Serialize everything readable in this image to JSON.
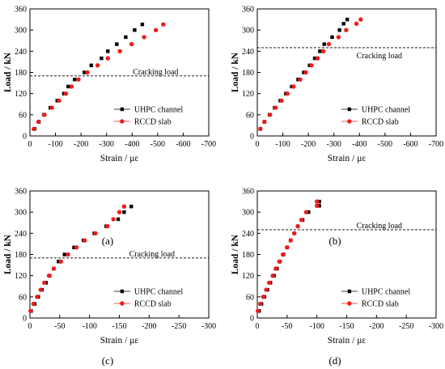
{
  "chart_data": [
    {
      "type": "scatter",
      "panel_label": "(a)",
      "xlabel": "Strain / με",
      "ylabel": "Load / kN",
      "xlim": [
        0,
        -700
      ],
      "ylim": [
        0,
        360
      ],
      "xticks": [
        0,
        -100,
        -200,
        -300,
        -400,
        -500,
        -600,
        -700
      ],
      "xtick_labels": [
        "0",
        "-100",
        "-200",
        "-300",
        "-400",
        "-500",
        "-600",
        "-700"
      ],
      "yticks": [
        0,
        60,
        120,
        180,
        240,
        300,
        360
      ],
      "ytick_labels": [
        "0",
        "60",
        "120",
        "180",
        "240",
        "300",
        "360"
      ],
      "legend_position": "lower-right",
      "cracking_load": {
        "y": 170,
        "label": "Cracking load"
      },
      "series": [
        {
          "name": "UHPC channel",
          "marker": "square",
          "color": "#000000",
          "points": [
            [
              -18,
              20
            ],
            [
              -35,
              40
            ],
            [
              -55,
              60
            ],
            [
              -80,
              80
            ],
            [
              -107,
              100
            ],
            [
              -133,
              120
            ],
            [
              -150,
              140
            ],
            [
              -175,
              160
            ],
            [
              -213,
              180
            ],
            [
              -240,
              200
            ],
            [
              -280,
              220
            ],
            [
              -305,
              240
            ],
            [
              -340,
              260
            ],
            [
              -375,
              280
            ],
            [
              -410,
              300
            ],
            [
              -440,
              316
            ]
          ]
        },
        {
          "name": "RCCD slab",
          "marker": "circle",
          "color": "#ee1c1c",
          "points": [
            [
              -15,
              20
            ],
            [
              -33,
              40
            ],
            [
              -57,
              60
            ],
            [
              -86,
              80
            ],
            [
              -114,
              100
            ],
            [
              -141,
              120
            ],
            [
              -163,
              140
            ],
            [
              -190,
              160
            ],
            [
              -225,
              180
            ],
            [
              -265,
              200
            ],
            [
              -305,
              220
            ],
            [
              -352,
              240
            ],
            [
              -398,
              260
            ],
            [
              -447,
              280
            ],
            [
              -493,
              300
            ],
            [
              -522,
              316
            ]
          ]
        }
      ]
    },
    {
      "type": "scatter",
      "panel_label": "(b)",
      "xlabel": "Strain / με",
      "ylabel": "Load / kN",
      "xlim": [
        0,
        -700
      ],
      "ylim": [
        0,
        360
      ],
      "xticks": [
        0,
        -100,
        -200,
        -300,
        -400,
        -500,
        -600,
        -700
      ],
      "xtick_labels": [
        "0",
        "-100",
        "-200",
        "-300",
        "-400",
        "-500",
        "-600",
        "-700"
      ],
      "yticks": [
        0,
        60,
        120,
        180,
        240,
        300,
        360
      ],
      "ytick_labels": [
        "0",
        "60",
        "120",
        "180",
        "240",
        "300",
        "360"
      ],
      "legend_position": "lower-right",
      "cracking_load": {
        "y": 250,
        "label": "Cracking load"
      },
      "series": [
        {
          "name": "UHPC channel",
          "marker": "square",
          "color": "#000000",
          "points": [
            [
              -12,
              20
            ],
            [
              -28,
              40
            ],
            [
              -48,
              60
            ],
            [
              -68,
              80
            ],
            [
              -90,
              100
            ],
            [
              -112,
              120
            ],
            [
              -135,
              140
            ],
            [
              -160,
              160
            ],
            [
              -182,
              180
            ],
            [
              -205,
              200
            ],
            [
              -225,
              220
            ],
            [
              -245,
              240
            ],
            [
              -262,
              260
            ],
            [
              -293,
              280
            ],
            [
              -322,
              300
            ],
            [
              -338,
              318
            ],
            [
              -352,
              330
            ]
          ]
        },
        {
          "name": "RCCD slab",
          "marker": "circle",
          "color": "#ee1c1c",
          "points": [
            [
              -12,
              20
            ],
            [
              -28,
              40
            ],
            [
              -50,
              60
            ],
            [
              -72,
              80
            ],
            [
              -95,
              100
            ],
            [
              -118,
              120
            ],
            [
              -142,
              140
            ],
            [
              -168,
              160
            ],
            [
              -190,
              180
            ],
            [
              -212,
              200
            ],
            [
              -236,
              220
            ],
            [
              -258,
              240
            ],
            [
              -280,
              260
            ],
            [
              -318,
              280
            ],
            [
              -348,
              300
            ],
            [
              -388,
              318
            ],
            [
              -405,
              330
            ]
          ]
        }
      ]
    },
    {
      "type": "scatter",
      "panel_label": "(c)",
      "xlabel": "Strain / με",
      "ylabel": "Load / kN",
      "xlim": [
        0,
        -300
      ],
      "ylim": [
        0,
        360
      ],
      "xticks": [
        0,
        -50,
        -100,
        -150,
        -200,
        -250,
        -300
      ],
      "xtick_labels": [
        "0",
        "-50",
        "-100",
        "-150",
        "-200",
        "-250",
        "-300"
      ],
      "yticks": [
        0,
        60,
        120,
        180,
        240,
        300,
        360
      ],
      "ytick_labels": [
        "0",
        "60",
        "120",
        "180",
        "240",
        "300",
        "360"
      ],
      "legend_position": "lower-right",
      "cracking_load": {
        "y": 170,
        "label": "Cracking load"
      },
      "series": [
        {
          "name": "UHPC channel",
          "marker": "square",
          "color": "#000000",
          "points": [
            [
              -2,
              20
            ],
            [
              -8,
              40
            ],
            [
              -14,
              60
            ],
            [
              -20,
              80
            ],
            [
              -27,
              100
            ],
            [
              -33,
              120
            ],
            [
              -40,
              140
            ],
            [
              -48,
              160
            ],
            [
              -58,
              180
            ],
            [
              -74,
              200
            ],
            [
              -90,
              220
            ],
            [
              -108,
              240
            ],
            [
              -128,
              260
            ],
            [
              -148,
              280
            ],
            [
              -158,
              300
            ],
            [
              -170,
              316
            ]
          ]
        },
        {
          "name": "RCCD slab",
          "marker": "circle",
          "color": "#ee1c1c",
          "points": [
            [
              -1,
              20
            ],
            [
              -6,
              40
            ],
            [
              -12,
              60
            ],
            [
              -18,
              80
            ],
            [
              -24,
              100
            ],
            [
              -32,
              120
            ],
            [
              -40,
              140
            ],
            [
              -52,
              160
            ],
            [
              -64,
              180
            ],
            [
              -78,
              200
            ],
            [
              -92,
              220
            ],
            [
              -110,
              240
            ],
            [
              -130,
              260
            ],
            [
              -140,
              280
            ],
            [
              -150,
              300
            ],
            [
              -158,
              316
            ]
          ]
        }
      ]
    },
    {
      "type": "scatter",
      "panel_label": "(d)",
      "xlabel": "Strain / με",
      "ylabel": "Load / kN",
      "xlim": [
        0,
        -300
      ],
      "ylim": [
        0,
        360
      ],
      "xticks": [
        0,
        -50,
        -100,
        -150,
        -200,
        -250,
        -300
      ],
      "xtick_labels": [
        "0",
        "-50",
        "-100",
        "-150",
        "-200",
        "-250",
        "-300"
      ],
      "yticks": [
        0,
        60,
        120,
        180,
        240,
        300,
        360
      ],
      "ytick_labels": [
        "0",
        "60",
        "120",
        "180",
        "240",
        "300",
        "360"
      ],
      "legend_position": "lower-right",
      "cracking_load": {
        "y": 250,
        "label": "Cracking load"
      },
      "series": [
        {
          "name": "UHPC channel",
          "marker": "square",
          "color": "#000000",
          "points": [
            [
              -3,
              20
            ],
            [
              -7,
              40
            ],
            [
              -12,
              60
            ],
            [
              -17,
              80
            ],
            [
              -22,
              100
            ],
            [
              -28,
              120
            ],
            [
              -33,
              140
            ],
            [
              -38,
              160
            ],
            [
              -44,
              180
            ],
            [
              -50,
              200
            ],
            [
              -56,
              220
            ],
            [
              -62,
              240
            ],
            [
              -68,
              260
            ],
            [
              -76,
              278
            ],
            [
              -86,
              300
            ],
            [
              -104,
              318
            ],
            [
              -104,
              330
            ]
          ]
        },
        {
          "name": "RCCD slab",
          "marker": "circle",
          "color": "#ee1c1c",
          "points": [
            [
              -1,
              20
            ],
            [
              -5,
              40
            ],
            [
              -10,
              60
            ],
            [
              -15,
              80
            ],
            [
              -20,
              100
            ],
            [
              -26,
              120
            ],
            [
              -31,
              140
            ],
            [
              -37,
              160
            ],
            [
              -43,
              180
            ],
            [
              -50,
              200
            ],
            [
              -56,
              220
            ],
            [
              -62,
              240
            ],
            [
              -68,
              260
            ],
            [
              -74,
              278
            ],
            [
              -82,
              300
            ],
            [
              -100,
              318
            ],
            [
              -100,
              330
            ]
          ]
        }
      ]
    }
  ]
}
